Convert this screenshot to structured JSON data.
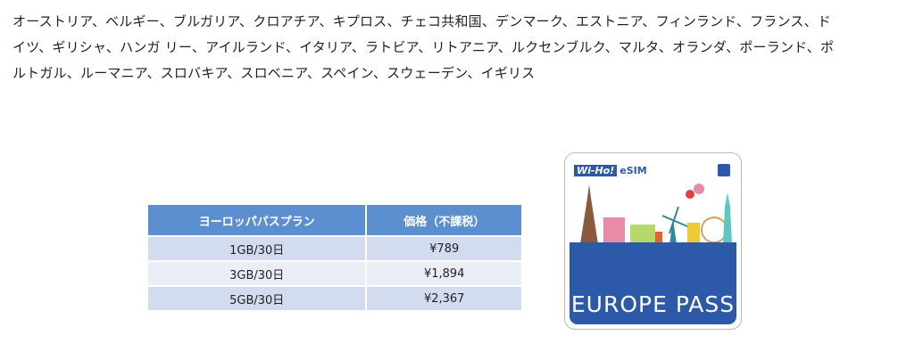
{
  "countries_lines": [
    "オーストリア、ベルギー、ブルガリア、クロアチア、キプロス、チェコ共和国、デンマーク、エストニア、フィンランド、フランス、ド",
    "イツ、ギリシャ、ハンガ リー、アイルランド、イタリア、ラトビア、リトアニア、ルクセンブルク、マルタ、オランダ、ポーランド、ポ",
    "ルトガル、ルーマニア、スロバキア、スロベニア、スペイン、スウェーデン、イギリス"
  ],
  "table": {
    "headers": [
      "ヨーロッパパスプラン",
      "価格（不課税）"
    ],
    "rows": [
      [
        "1GB/30日",
        "¥789"
      ],
      [
        "3GB/30日",
        "¥1,894"
      ],
      [
        "5GB/30日",
        "¥2,367"
      ]
    ]
  },
  "card": {
    "brand": "Wi-Ho!",
    "esim": "eSIM",
    "title": "EUROPE PASS",
    "colors": {
      "blue": "#2d5aa8",
      "header": "#5b8fd0"
    }
  }
}
